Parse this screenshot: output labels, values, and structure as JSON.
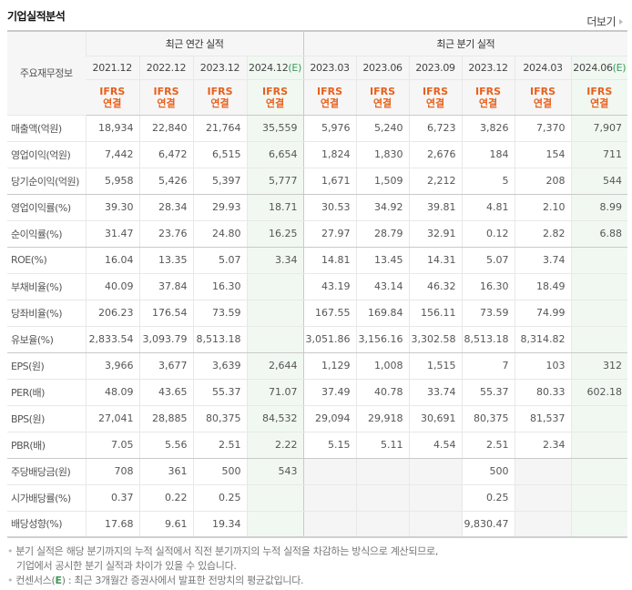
{
  "header": {
    "title": "기업실적분석",
    "more_label": "더보기"
  },
  "table": {
    "row_header": "주요재무정보",
    "groups": {
      "annual": "최근 연간 실적",
      "quarterly": "최근 분기 실적"
    },
    "periods": [
      {
        "label": "2021.12",
        "est": ""
      },
      {
        "label": "2022.12",
        "est": ""
      },
      {
        "label": "2023.12",
        "est": ""
      },
      {
        "label": "2024.12",
        "est": "(E)"
      },
      {
        "label": "2023.03",
        "est": ""
      },
      {
        "label": "2023.06",
        "est": ""
      },
      {
        "label": "2023.09",
        "est": ""
      },
      {
        "label": "2023.12",
        "est": ""
      },
      {
        "label": "2024.03",
        "est": ""
      },
      {
        "label": "2024.06",
        "est": "(E)"
      }
    ],
    "accounting": {
      "line1": "IFRS",
      "line2": "연결"
    },
    "rows": [
      {
        "label": "매출액(억원)",
        "values": [
          "18,934",
          "22,840",
          "21,764",
          "35,559",
          "5,976",
          "5,240",
          "6,723",
          "3,826",
          "7,370",
          "7,907"
        ]
      },
      {
        "label": "영업이익(억원)",
        "values": [
          "7,442",
          "6,472",
          "6,515",
          "6,654",
          "1,824",
          "1,830",
          "2,676",
          "184",
          "154",
          "711"
        ]
      },
      {
        "label": "당기순이익(억원)",
        "values": [
          "5,958",
          "5,426",
          "5,397",
          "5,777",
          "1,671",
          "1,509",
          "2,212",
          "5",
          "208",
          "544"
        ]
      },
      {
        "label": "영업이익률(%)",
        "values": [
          "39.30",
          "28.34",
          "29.93",
          "18.71",
          "30.53",
          "34.92",
          "39.81",
          "4.81",
          "2.10",
          "8.99"
        ]
      },
      {
        "label": "순이익률(%)",
        "values": [
          "31.47",
          "23.76",
          "24.80",
          "16.25",
          "27.97",
          "28.79",
          "32.91",
          "0.12",
          "2.82",
          "6.88"
        ]
      },
      {
        "label": "ROE(%)",
        "values": [
          "16.04",
          "13.35",
          "5.07",
          "3.34",
          "14.81",
          "13.45",
          "14.31",
          "5.07",
          "3.74",
          ""
        ]
      },
      {
        "label": "부채비율(%)",
        "values": [
          "40.09",
          "37.84",
          "16.30",
          "",
          "43.19",
          "43.14",
          "46.32",
          "16.30",
          "18.49",
          ""
        ]
      },
      {
        "label": "당좌비율(%)",
        "values": [
          "206.23",
          "176.54",
          "73.59",
          "",
          "167.55",
          "169.84",
          "156.11",
          "73.59",
          "74.99",
          ""
        ]
      },
      {
        "label": "유보율(%)",
        "values": [
          "2,833.54",
          "3,093.79",
          "8,513.18",
          "",
          "3,051.86",
          "3,156.16",
          "3,302.58",
          "8,513.18",
          "8,314.82",
          ""
        ]
      },
      {
        "label": "EPS(원)",
        "values": [
          "3,966",
          "3,677",
          "3,639",
          "2,644",
          "1,129",
          "1,008",
          "1,515",
          "7",
          "103",
          "312"
        ]
      },
      {
        "label": "PER(배)",
        "values": [
          "48.09",
          "43.65",
          "55.37",
          "71.07",
          "37.49",
          "40.78",
          "33.74",
          "55.37",
          "80.33",
          "602.18"
        ]
      },
      {
        "label": "BPS(원)",
        "values": [
          "27,041",
          "28,885",
          "80,375",
          "84,532",
          "29,094",
          "29,918",
          "30,691",
          "80,375",
          "81,537",
          ""
        ]
      },
      {
        "label": "PBR(배)",
        "values": [
          "7.05",
          "5.56",
          "2.51",
          "2.22",
          "5.15",
          "5.11",
          "4.54",
          "2.51",
          "2.34",
          ""
        ]
      },
      {
        "label": "주당배당금(원)",
        "values": [
          "708",
          "361",
          "500",
          "543",
          "",
          "",
          "",
          "500",
          "",
          ""
        ]
      },
      {
        "label": "시가배당률(%)",
        "values": [
          "0.37",
          "0.22",
          "0.25",
          "",
          "",
          "",
          "",
          "0.25",
          "",
          ""
        ]
      },
      {
        "label": "배당성향(%)",
        "values": [
          "17.68",
          "9.61",
          "19.34",
          "",
          "",
          "",
          "",
          "9,830.47",
          "",
          ""
        ]
      }
    ]
  },
  "notes": {
    "line1": "분기 실적은 해당 분기까지의 누적 실적에서 직전 분기까지의 누적 실적을 차감하는 방식으로 계산되므로,",
    "line2": "기업에서 공시한 분기 실적과 차이가 있을 수 있습니다.",
    "line3_prefix": "컨센서스(",
    "line3_e": "E",
    "line3_suffix": ") : 최근 3개월간 증권사에서 발표한 전망치의 평균값입니다."
  },
  "colors": {
    "accent_orange": "#e8601c",
    "estimate_green": "#3a9a5a",
    "estimate_bg": "#f1f8f2",
    "header_bg": "#f6f6f6"
  }
}
